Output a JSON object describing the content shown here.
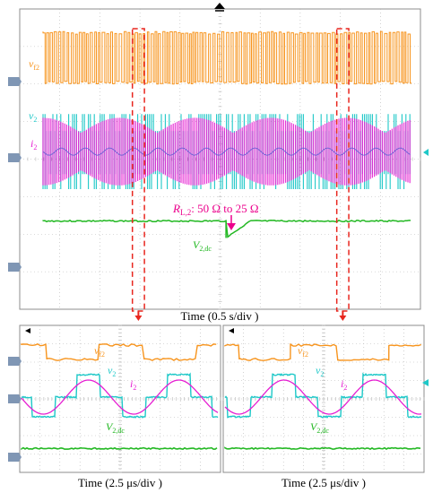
{
  "colors": {
    "vf2": "#f7941d",
    "v2": "#1ec8c8",
    "i2": "#e61ed2",
    "v2dc": "#22b822",
    "marker": "#e8261e",
    "annotation": "#ec008c",
    "grid": "#b4b4b4",
    "ground_marker": "#7f96b4"
  },
  "annotation": {
    "load_step": "R",
    "load_step_sub": "L,2",
    "load_step_rest": ": 50 Ω to 25 Ω"
  },
  "chart_data": [
    {
      "type": "line",
      "panel": "top",
      "xlabel": "Time (0.5 s/div )",
      "x_range_div": [
        0,
        10
      ],
      "grid": true,
      "series": [
        {
          "name": "v",
          "sub": "f2",
          "waveform": "square switching, constant envelope",
          "level_div": 6.7,
          "amplitude_div": 0.7
        },
        {
          "name": "v",
          "sub": "2",
          "waveform": "quasi-square, constant envelope",
          "level_div": 4.2,
          "amplitude_div": 1.0
        },
        {
          "name": "i",
          "sub": "2",
          "waveform": "sinusoidal, envelope-modulated",
          "level_div": 4.2,
          "amplitude_div": 0.9
        },
        {
          "name": "V",
          "sub": "2,dc",
          "waveform": "dc level with dip at load step",
          "level_div": 2.35,
          "dip_at_div": 4.7,
          "dip_depth_div": 0.45,
          "recovery_div": 1.0
        }
      ],
      "zoom_windows_div": [
        [
          2.7,
          3.0
        ],
        [
          7.8,
          8.1
        ]
      ]
    },
    {
      "type": "line",
      "panel": "bottom-left",
      "xlabel": "Time (2.5 μs/div )",
      "grid": true,
      "series": [
        {
          "name": "v",
          "sub": "f2",
          "waveform": "square",
          "edges_div": [
            1.35,
            3.95,
            6.2,
            8.85
          ]
        },
        {
          "name": "v",
          "sub": "2",
          "waveform": "quasi-square three-level",
          "period_div": 4.5
        },
        {
          "name": "i",
          "sub": "2",
          "waveform": "sine",
          "period_div": 4.5,
          "phase_div": 2.3
        },
        {
          "name": "V",
          "sub": "2,dc",
          "waveform": "dc",
          "level_div": 1.3
        }
      ]
    },
    {
      "type": "line",
      "panel": "bottom-right",
      "xlabel": "Time (2.5 μs/div )",
      "grid": true,
      "series": [
        {
          "name": "v",
          "sub": "f2",
          "waveform": "square",
          "edges_div": [
            0.8,
            3.35,
            5.7,
            8.25
          ]
        },
        {
          "name": "v",
          "sub": "2",
          "waveform": "quasi-square three-level",
          "period_div": 4.5
        },
        {
          "name": "i",
          "sub": "2",
          "waveform": "sine",
          "period_div": 4.5,
          "phase_div": 1.9
        },
        {
          "name": "V",
          "sub": "2,dc",
          "waveform": "dc",
          "level_div": 1.3
        }
      ]
    }
  ]
}
